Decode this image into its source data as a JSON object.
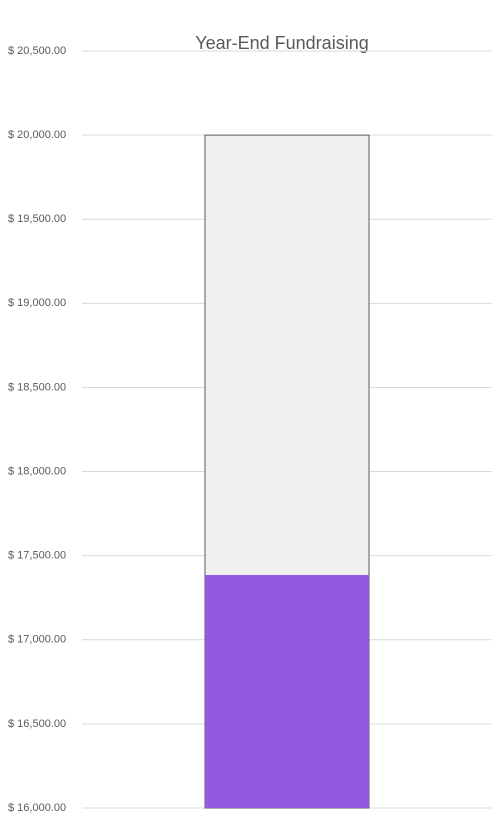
{
  "chart_data": {
    "type": "bar",
    "title": "Year-End Fundraising",
    "categories": [
      null
    ],
    "series": [
      {
        "color": "#f0f0f0",
        "values": [
          20000
        ]
      },
      {
        "color": "#9558e2",
        "values": [
          17385
        ]
      }
    ],
    "ylim": [
      16000,
      20500
    ],
    "yticks": [
      {
        "value": 16000,
        "label": "$ 16,000.00"
      },
      {
        "value": 16500,
        "label": "$ 16,500.00"
      },
      {
        "value": 17000,
        "label": "$ 17,000.00"
      },
      {
        "value": 17500,
        "label": "$ 17,500.00"
      },
      {
        "value": 18000,
        "label": "$ 18,000.00"
      },
      {
        "value": 18500,
        "label": "$ 18,500.00"
      },
      {
        "value": 19000,
        "label": "$ 19,000.00"
      },
      {
        "value": 19500,
        "label": "$ 19,500.00"
      },
      {
        "value": 20000,
        "label": "$ 20,000.00"
      },
      {
        "value": 20500,
        "label": "$ 20,500.00"
      }
    ],
    "grid": true
  }
}
